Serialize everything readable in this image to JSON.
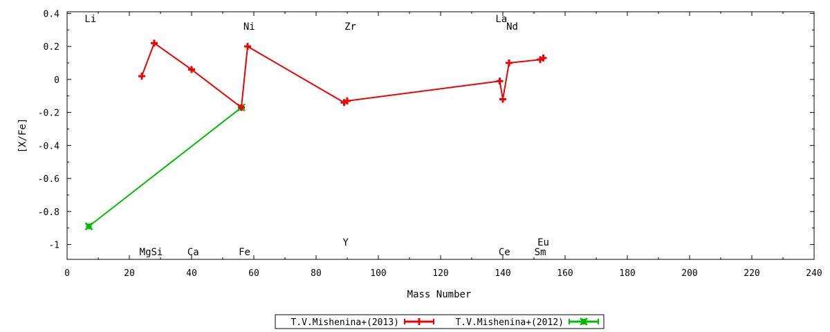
{
  "chart_data": {
    "type": "line",
    "xlabel": "Mass Number",
    "ylabel": "[X/Fe]",
    "xlim": [
      0,
      240
    ],
    "ylim": [
      -1.09,
      0.41
    ],
    "xticks": [
      0,
      20,
      40,
      60,
      80,
      100,
      120,
      140,
      160,
      180,
      200,
      220,
      240
    ],
    "yticks": [
      {
        "v": 0.4,
        "t": "0.4"
      },
      {
        "v": 0.2,
        "t": "0.2"
      },
      {
        "v": 0,
        "t": "0"
      },
      {
        "v": -0.2,
        "t": "-0.2"
      },
      {
        "v": -0.4,
        "t": "-0.4"
      },
      {
        "v": -0.6,
        "t": "-0.6"
      },
      {
        "v": -0.8,
        "t": "-0.8"
      },
      {
        "v": -1,
        "t": "-1"
      }
    ],
    "grid": false,
    "legend_position": "bottom-center",
    "series": [
      {
        "name": "T.V.Mishenina+(2013)",
        "color": "#ee0000",
        "marker": "plus",
        "points": [
          {
            "x": 24,
            "y": 0.02
          },
          {
            "x": 28,
            "y": 0.22
          },
          {
            "x": 40,
            "y": 0.06
          },
          {
            "x": 56,
            "y": -0.17
          },
          {
            "x": 58,
            "y": 0.2
          },
          {
            "x": 89,
            "y": -0.14
          },
          {
            "x": 90,
            "y": -0.13
          },
          {
            "x": 139,
            "y": -0.01
          },
          {
            "x": 140,
            "y": -0.12
          },
          {
            "x": 142,
            "y": 0.1
          },
          {
            "x": 152,
            "y": 0.12
          },
          {
            "x": 153,
            "y": 0.13
          }
        ]
      },
      {
        "name": "T.V.Mishenina+(2012)",
        "color": "#00bb00",
        "marker": "cross-square",
        "points": [
          {
            "x": 7,
            "y": -0.89
          },
          {
            "x": 56,
            "y": -0.17
          }
        ]
      }
    ],
    "element_labels": [
      {
        "text": "Li",
        "x": 7.5,
        "pos": "top"
      },
      {
        "text": "Ni",
        "x": 58.5,
        "pos": "upper"
      },
      {
        "text": "Zr",
        "x": 91,
        "pos": "upper"
      },
      {
        "text": "La",
        "x": 139.5,
        "pos": "top"
      },
      {
        "text": "Nd",
        "x": 143,
        "pos": "upper"
      },
      {
        "text": "MgSi",
        "x": 27,
        "pos": "bottom"
      },
      {
        "text": "Ca",
        "x": 40.5,
        "pos": "bottom"
      },
      {
        "text": "Fe",
        "x": 57,
        "pos": "bottom"
      },
      {
        "text": "Y",
        "x": 89.5,
        "pos": "lower"
      },
      {
        "text": "Ce",
        "x": 140.5,
        "pos": "bottom"
      },
      {
        "text": "Eu",
        "x": 153,
        "pos": "lower"
      },
      {
        "text": "Sm",
        "x": 152,
        "pos": "bottom"
      }
    ]
  }
}
